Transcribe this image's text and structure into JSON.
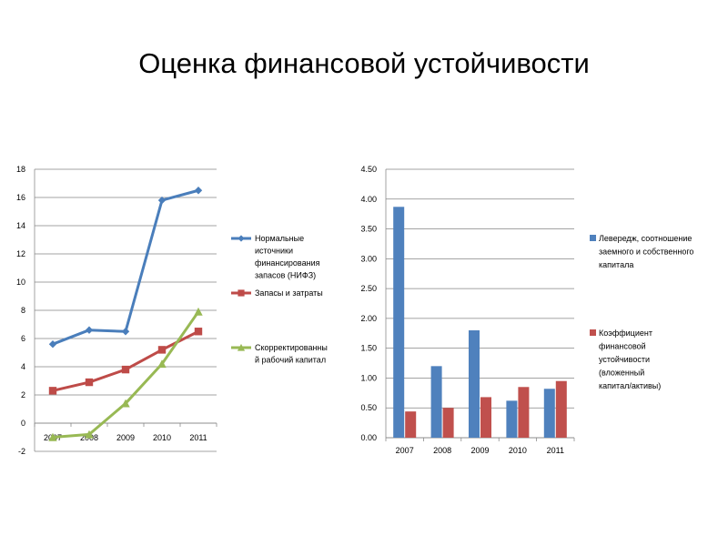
{
  "slide": {
    "title": "Оценка финансовой устойчивости"
  },
  "chart_data": [
    {
      "type": "line",
      "title": "",
      "xlabel": "",
      "ylabel": "",
      "categories": [
        "2007",
        "2008",
        "2009",
        "2010",
        "2011"
      ],
      "ylim": [
        -2,
        18
      ],
      "ytick_step": 2,
      "grid": true,
      "legend_position": "right",
      "series": [
        {
          "name": "Нормальные источники финансирования запасов (НИФЗ)",
          "legend_lines": [
            "Нормальные",
            "источники",
            "финансирования",
            "запасов (НИФЗ)"
          ],
          "values": [
            5.6,
            6.6,
            6.5,
            15.8,
            16.5
          ],
          "color": "#4a7ebb",
          "marker": "diamond"
        },
        {
          "name": "Запасы и затраты",
          "legend_lines": [
            "Запасы и затраты"
          ],
          "values": [
            2.3,
            2.9,
            3.8,
            5.2,
            6.5
          ],
          "color": "#be4b48",
          "marker": "square"
        },
        {
          "name": "Скорректированный рабочий капитал",
          "legend_lines": [
            "Скорректированны",
            "й рабочий капитал"
          ],
          "values": [
            -1.0,
            -0.8,
            1.4,
            4.2,
            7.9
          ],
          "color": "#98b954",
          "marker": "triangle"
        }
      ]
    },
    {
      "type": "bar",
      "title": "",
      "xlabel": "",
      "ylabel": "",
      "categories": [
        "2007",
        "2008",
        "2009",
        "2010",
        "2011"
      ],
      "ylim": [
        0,
        4.5
      ],
      "ytick_step": 0.5,
      "grid": true,
      "legend_position": "right",
      "series": [
        {
          "name": "Левередж, соотношение заемного и собственного капитала",
          "legend_lines": [
            "Левередж, соотношение",
            "заемного и собственного",
            "капитала"
          ],
          "values": [
            3.87,
            1.2,
            1.8,
            0.62,
            0.82
          ],
          "color": "#4f81bd"
        },
        {
          "name": "Коэффициент финансовой устойчивости (вложенный капитал/активы)",
          "legend_lines": [
            "Коэффициент",
            "финансовой",
            "устойчивости",
            "(вложенный",
            "капитал/активы)"
          ],
          "values": [
            0.44,
            0.5,
            0.68,
            0.85,
            0.95
          ],
          "color": "#c0504d"
        }
      ]
    }
  ]
}
